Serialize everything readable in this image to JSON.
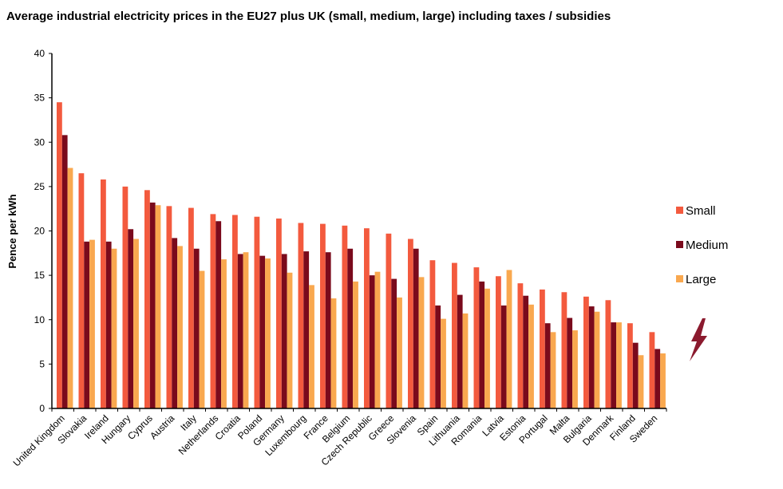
{
  "chart_data": {
    "type": "bar",
    "title": "Average industrial electricity prices in the EU27 plus UK (small, medium, large) including taxes / subsidies",
    "xlabel": "",
    "ylabel": "Pence per kWh",
    "ylim": [
      0,
      40
    ],
    "yticks": [
      "0",
      "5",
      "10",
      "15",
      "20",
      "25",
      "30",
      "35",
      "40"
    ],
    "grid": false,
    "legend_position": "right",
    "categories": [
      "United Kingdom",
      "Slovakia",
      "Ireland",
      "Hungary",
      "Cyprus",
      "Austria",
      "Italy",
      "Netherlands",
      "Croatia",
      "Poland",
      "Germany",
      "Luxembourg",
      "France",
      "Belgium",
      "Czech Republic",
      "Greece",
      "Slovenia",
      "Spain",
      "Lithuania",
      "Romania",
      "Latvia",
      "Estonia",
      "Portugal",
      "Malta",
      "Bulgaria",
      "Denmark",
      "Finland",
      "Sweden"
    ],
    "series": [
      {
        "name": "Small",
        "color": "#f35a3e",
        "values": [
          34.5,
          26.5,
          25.8,
          25.0,
          24.6,
          22.8,
          22.6,
          21.9,
          21.8,
          21.6,
          21.4,
          20.9,
          20.8,
          20.6,
          20.3,
          19.7,
          19.1,
          16.7,
          16.4,
          15.9,
          14.9,
          14.1,
          13.4,
          13.1,
          12.6,
          12.2,
          9.6,
          8.6
        ]
      },
      {
        "name": "Medium",
        "color": "#7a0a1c",
        "values": [
          30.8,
          18.8,
          18.8,
          20.2,
          23.2,
          19.2,
          18.0,
          21.1,
          17.4,
          17.2,
          17.4,
          17.7,
          17.6,
          18.0,
          15.0,
          14.6,
          18.0,
          11.6,
          12.8,
          14.3,
          11.6,
          12.7,
          9.6,
          10.2,
          11.5,
          9.7,
          7.4,
          6.7
        ]
      },
      {
        "name": "Large",
        "color": "#f9a84f",
        "values": [
          27.1,
          19.0,
          18.0,
          19.1,
          22.9,
          18.3,
          15.5,
          16.8,
          17.6,
          16.9,
          15.3,
          13.9,
          12.4,
          14.3,
          15.4,
          12.5,
          14.8,
          10.1,
          10.7,
          13.5,
          15.6,
          11.7,
          8.6,
          8.8,
          10.9,
          9.7,
          6.0,
          6.2
        ]
      }
    ]
  },
  "decoration": {
    "icon": "lightning-bolt-icon",
    "color": "#8b1a2e"
  }
}
